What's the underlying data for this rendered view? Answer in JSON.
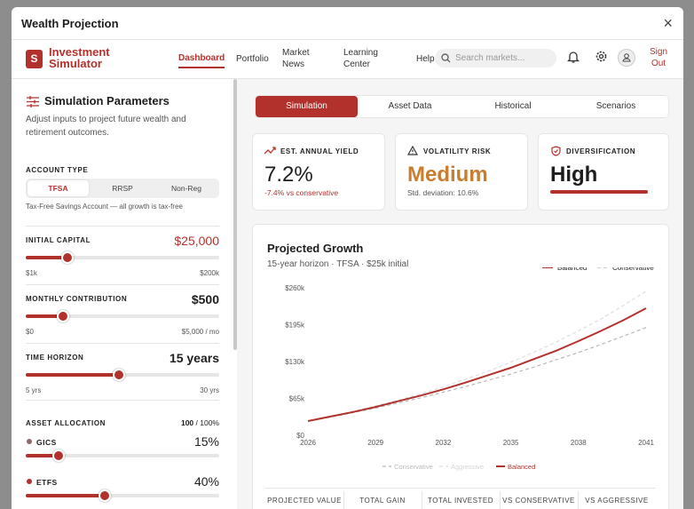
{
  "modal": {
    "title": "Wealth Projection",
    "close": "×"
  },
  "nav": {
    "logo": "S",
    "brand": "Investment Simulator",
    "links": [
      "Dashboard",
      "Portfolio",
      "Market News",
      "Learning Center",
      "Help"
    ],
    "search_placeholder": "Search markets...",
    "sign_out": "Sign Out"
  },
  "sidebar": {
    "title": "Simulation Parameters",
    "description": "Adjust inputs to project future wealth and retirement outcomes.",
    "account_type": {
      "label": "ACCOUNT TYPE",
      "options": [
        "TFSA",
        "RRSP",
        "Non-Reg"
      ],
      "note": "Tax-Free Savings Account — all growth is tax-free"
    },
    "sliders": [
      {
        "label": "INITIAL CAPITAL",
        "value": "$25,000",
        "min": "$1k",
        "max": "$200k"
      },
      {
        "label": "MONTHLY CONTRIBUTION",
        "value": "$500",
        "min": "$0",
        "max": "$5,000 / mo"
      },
      {
        "label": "TIME HORIZON",
        "value": "15 years",
        "min": "5 yrs",
        "max": "30 yrs"
      }
    ],
    "allocation": {
      "label": "ASSET ALLOCATION",
      "total": "100",
      "of": "/ 100%",
      "items": [
        {
          "name": "GICS",
          "value": "15%"
        },
        {
          "name": "ETFS",
          "value": "40%"
        }
      ]
    }
  },
  "tabs": [
    "Simulation",
    "Asset Data",
    "Historical",
    "Scenarios"
  ],
  "cards": [
    {
      "label": "EST. ANNUAL YIELD",
      "value": "7.2%",
      "note": "-7.4% vs conservative"
    },
    {
      "label": "VOLATILITY RISK",
      "value": "Medium",
      "note": "Std. deviation: 10.6%"
    },
    {
      "label": "DIVERSIFICATION",
      "value": "High"
    }
  ],
  "chart": {
    "type": "line",
    "title": "Projected Growth",
    "subtitle": "15-year horizon · TFSA · $25k initial",
    "x": [
      2026,
      2027,
      2028,
      2029,
      2030,
      2031,
      2032,
      2033,
      2034,
      2035,
      2036,
      2037,
      2038,
      2039,
      2040,
      2041
    ],
    "xlim": [
      2026,
      2041
    ],
    "xticks": [
      2026,
      2029,
      2032,
      2035,
      2038,
      2041
    ],
    "ylim": [
      0,
      260000
    ],
    "yticks": [
      {
        "value": 0,
        "label": "$0"
      },
      {
        "value": 65000,
        "label": "$65k"
      },
      {
        "value": 130000,
        "label": "$130k"
      },
      {
        "value": 195000,
        "label": "$195k"
      },
      {
        "value": 260000,
        "label": "$260k"
      }
    ],
    "series": [
      {
        "name": "Conservative",
        "color": "#b8b8b8",
        "values": [
          25000,
          32000,
          40000,
          48000,
          57000,
          66000,
          76000,
          86000,
          97000,
          108000,
          120000,
          133000,
          146000,
          160000,
          175000,
          190000
        ]
      },
      {
        "name": "Aggressive",
        "color": "#dedede",
        "values": [
          25000,
          33000,
          42000,
          52000,
          62000,
          73000,
          85000,
          99000,
          113000,
          129000,
          146000,
          164000,
          184000,
          205000,
          229000,
          254000
        ]
      },
      {
        "name": "Balanced",
        "color": "#b3312c",
        "values": [
          25000,
          33000,
          41000,
          50000,
          60000,
          70000,
          81000,
          93000,
          106000,
          119000,
          134000,
          149000,
          166000,
          184000,
          203000,
          224000
        ]
      }
    ]
  },
  "table": {
    "headers": [
      "PROJECTED VALUE",
      "TOTAL GAIN",
      "TOTAL INVESTED",
      "VS CONSERVATIVE",
      "VS AGGRESSIVE"
    ]
  }
}
